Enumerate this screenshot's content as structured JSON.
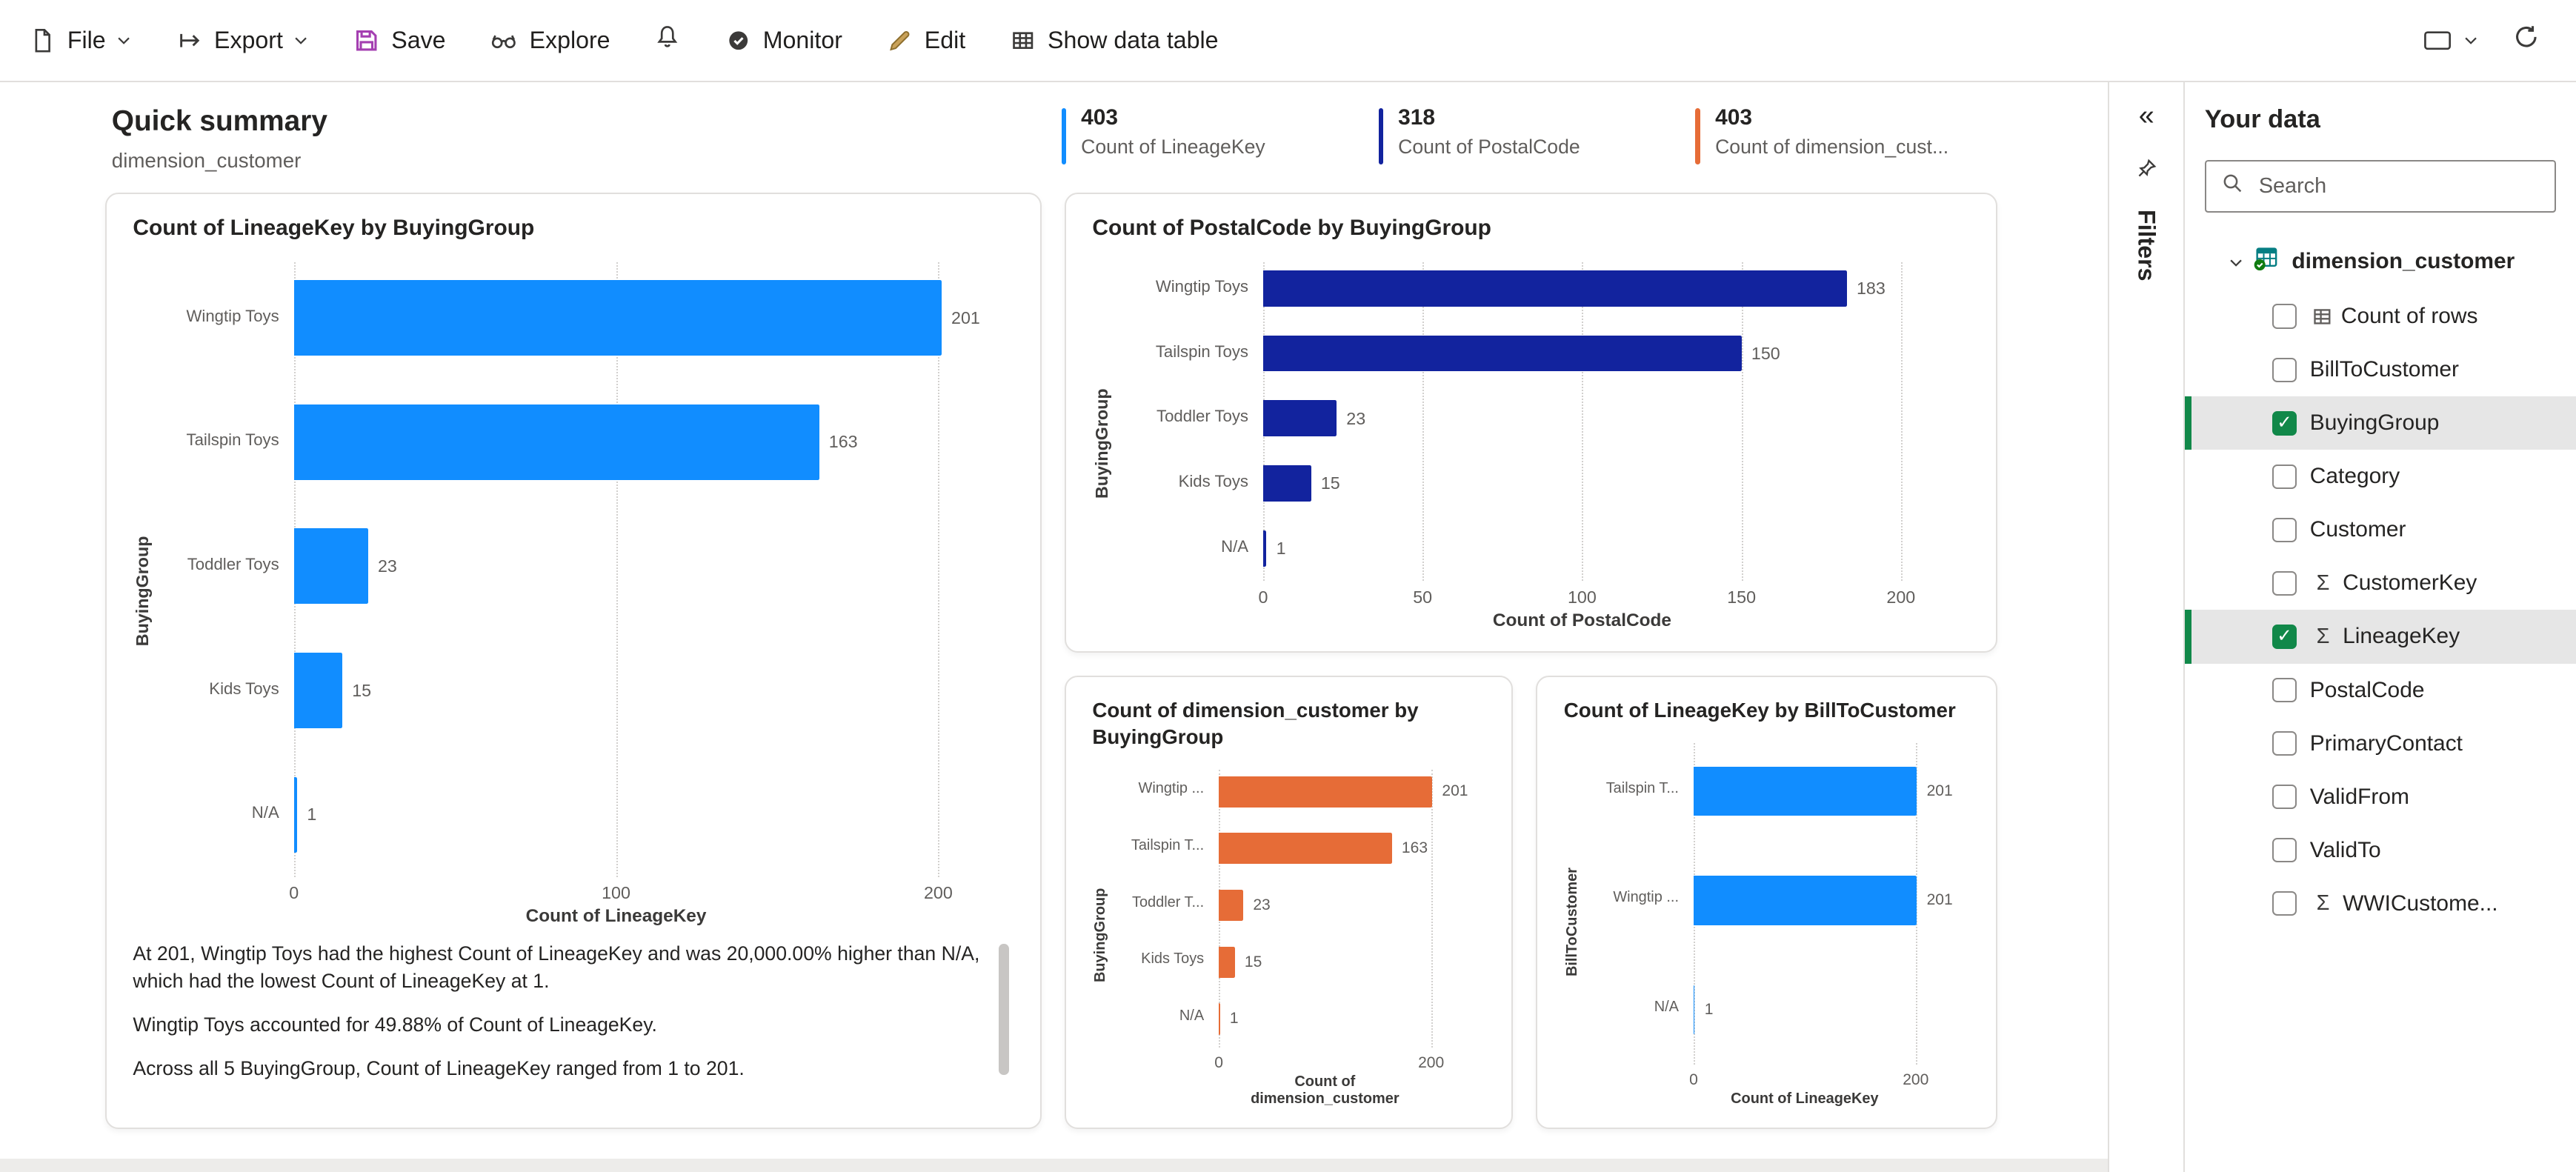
{
  "toolbar": {
    "file": "File",
    "export": "Export",
    "save": "Save",
    "explore": "Explore",
    "monitor": "Monitor",
    "edit": "Edit",
    "show_data_table": "Show data table"
  },
  "header": {
    "title": "Quick summary",
    "subtitle": "dimension_customer"
  },
  "stats": [
    {
      "value": "403",
      "label": "Count of LineageKey",
      "color": "#118DFF"
    },
    {
      "value": "318",
      "label": "Count of PostalCode",
      "color": "#12239E"
    },
    {
      "value": "403",
      "label": "Count of dimension_cust...",
      "color": "#E66C37"
    }
  ],
  "chart_data": [
    {
      "type": "bar",
      "orientation": "horizontal",
      "title": "Count of LineageKey by BuyingGroup",
      "categories": [
        "Wingtip Toys",
        "Tailspin Toys",
        "Toddler Toys",
        "Kids Toys",
        "N/A"
      ],
      "values": [
        201,
        163,
        23,
        15,
        1
      ],
      "xlabel": "Count of LineageKey",
      "ylabel": "BuyingGroup",
      "xlim": [
        0,
        200
      ],
      "ticks": [
        0,
        100,
        200
      ],
      "grid": "dotted-vertical",
      "color": "#118DFF"
    },
    {
      "type": "bar",
      "orientation": "horizontal",
      "title": "Count of PostalCode by BuyingGroup",
      "categories": [
        "Wingtip Toys",
        "Tailspin Toys",
        "Toddler Toys",
        "Kids Toys",
        "N/A"
      ],
      "values": [
        183,
        150,
        23,
        15,
        1
      ],
      "xlabel": "Count of PostalCode",
      "ylabel": "BuyingGroup",
      "xlim": [
        0,
        200
      ],
      "ticks": [
        0,
        50,
        100,
        150,
        200
      ],
      "grid": "dotted-vertical",
      "color": "#12239E"
    },
    {
      "type": "bar",
      "orientation": "horizontal",
      "title": "Count of dimension_customer by BuyingGroup",
      "categories": [
        "Wingtip ...",
        "Tailspin T...",
        "Toddler T...",
        "Kids Toys",
        "N/A"
      ],
      "values": [
        201,
        163,
        23,
        15,
        1
      ],
      "xlabel": "Count of dimension_customer",
      "ylabel": "BuyingGroup",
      "xlim": [
        0,
        200
      ],
      "ticks": [
        0,
        200
      ],
      "grid": "dotted-vertical",
      "color": "#E66C37"
    },
    {
      "type": "bar",
      "orientation": "horizontal",
      "title": "Count of LineageKey by BillToCustomer",
      "categories": [
        "Tailspin T...",
        "Wingtip ...",
        "N/A"
      ],
      "values": [
        201,
        201,
        1
      ],
      "xlabel": "Count of LineageKey",
      "ylabel": "BillToCustomer",
      "xlim": [
        0,
        200
      ],
      "ticks": [
        0,
        200
      ],
      "grid": "dotted-vertical",
      "color": "#118DFF"
    }
  ],
  "insights": [
    "At 201, Wingtip Toys had the highest Count of LineageKey and was 20,000.00% higher than N/A, which had the lowest Count of LineageKey at 1.",
    "Wingtip Toys accounted for 49.88% of Count of LineageKey.",
    "Across all 5 BuyingGroup, Count of LineageKey ranged from 1 to 201."
  ],
  "filters": {
    "label": "Filters"
  },
  "sidebar": {
    "title": "Your data",
    "search_placeholder": "Search",
    "table": {
      "name": "dimension_customer"
    },
    "fields": [
      {
        "label": "Count of rows",
        "checked": false,
        "icon": "table"
      },
      {
        "label": "BillToCustomer",
        "checked": false,
        "icon": null
      },
      {
        "label": "BuyingGroup",
        "checked": true,
        "icon": null
      },
      {
        "label": "Category",
        "checked": false,
        "icon": null
      },
      {
        "label": "Customer",
        "checked": false,
        "icon": null
      },
      {
        "label": "CustomerKey",
        "checked": false,
        "icon": "sigma"
      },
      {
        "label": "LineageKey",
        "checked": true,
        "icon": "sigma"
      },
      {
        "label": "PostalCode",
        "checked": false,
        "icon": null
      },
      {
        "label": "PrimaryContact",
        "checked": false,
        "icon": null
      },
      {
        "label": "ValidFrom",
        "checked": false,
        "icon": null
      },
      {
        "label": "ValidTo",
        "checked": false,
        "icon": null
      },
      {
        "label": "WWICustome...",
        "checked": false,
        "icon": "sigma"
      }
    ]
  },
  "colors": {
    "blue": "#118DFF",
    "navy": "#12239E",
    "orange": "#E66C37",
    "green": "#118849"
  }
}
